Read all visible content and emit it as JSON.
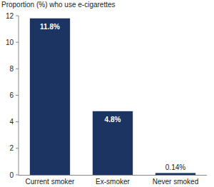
{
  "chart_data": {
    "type": "bar",
    "y_label": "Proportion (%) who use e-cigarettes",
    "categories": [
      "Current smoker",
      "Ex-smoker",
      "Never smoked"
    ],
    "values": [
      11.8,
      4.8,
      0.14
    ],
    "value_labels": [
      "11.8%",
      "4.8%",
      "0.14%"
    ],
    "color": "#1c3461",
    "ylim": [
      0,
      12
    ],
    "yticks": [
      0,
      2,
      4,
      6,
      8,
      10,
      12
    ],
    "grid": false,
    "data_labels": true
  }
}
